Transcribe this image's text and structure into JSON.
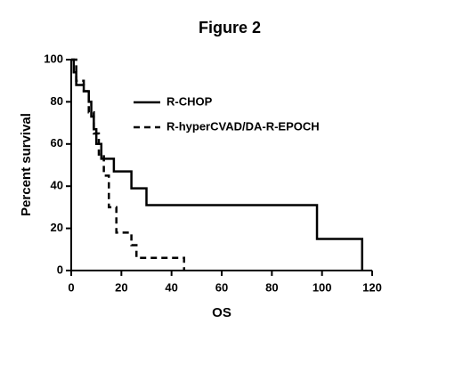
{
  "chart_data": {
    "type": "line",
    "step": true,
    "title": "Figure 2",
    "x_label": "OS",
    "y_label": "Percent survival",
    "xlim": [
      0,
      120
    ],
    "ylim": [
      0,
      100
    ],
    "xticks": [
      0,
      20,
      40,
      60,
      80,
      100,
      120
    ],
    "yticks": [
      0,
      20,
      40,
      60,
      80,
      100
    ],
    "legend": "upper-center",
    "series": [
      {
        "name": "R-CHOP",
        "color": "#000000",
        "linestyle": "solid",
        "x": [
          0,
          1,
          2,
          5,
          7,
          8,
          9,
          10,
          12,
          17,
          24,
          30,
          98,
          116
        ],
        "values": [
          100,
          94,
          88,
          85,
          80,
          73,
          67,
          60,
          53,
          47,
          39,
          31,
          15,
          0
        ]
      },
      {
        "name": "R-hyperCVAD/DA-R-EPOCH",
        "color": "#000000",
        "linestyle": "dashed",
        "x": [
          0,
          2,
          5,
          7,
          9,
          11,
          13,
          15,
          18,
          24,
          26,
          45
        ],
        "values": [
          100,
          90,
          85,
          75,
          65,
          55,
          45,
          30,
          18,
          12,
          6,
          0
        ]
      }
    ]
  }
}
